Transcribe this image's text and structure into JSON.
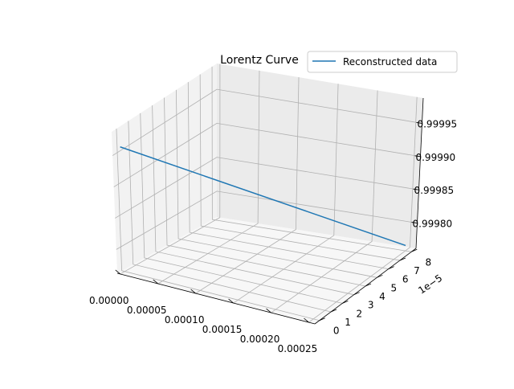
{
  "chart_data": {
    "type": "line",
    "projection": "3d",
    "title": "Lorentz Curve",
    "legend": {
      "placement": "top-right",
      "entries": [
        "Reconstructed data"
      ]
    },
    "grid": true,
    "x_axis": {
      "ticks": [
        "0.00000",
        "0.00005",
        "0.00010",
        "0.00015",
        "0.00020",
        "0.00025"
      ],
      "range": [
        -4e-06,
        0.000258
      ]
    },
    "y_axis": {
      "ticks": [
        "0",
        "1",
        "2",
        "3",
        "4",
        "5",
        "6",
        "7",
        "8"
      ],
      "offset_label": "1e−5",
      "range": [
        -0.4,
        8.4
      ]
    },
    "z_axis": {
      "ticks": [
        "0.99980",
        "0.99985",
        "0.99990",
        "0.99995"
      ],
      "range": [
        0.999762,
        0.999988
      ]
    },
    "series": [
      {
        "name": "Reconstructed data",
        "color": "#1f77b4",
        "points": [
          {
            "x": 0.0,
            "y": 0.0,
            "z": 0.99996
          },
          {
            "x": 0.00025,
            "y": 8.0,
            "z": 0.99977
          }
        ]
      }
    ]
  }
}
